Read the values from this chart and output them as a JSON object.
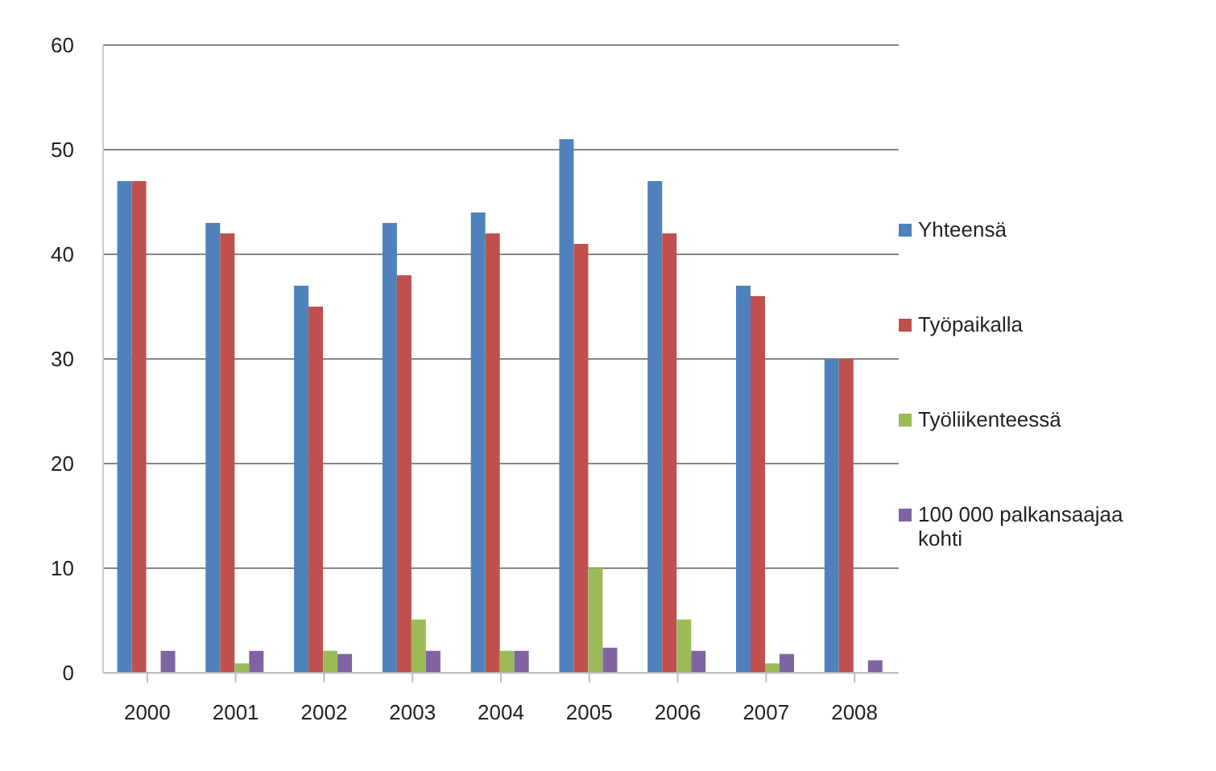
{
  "chart_data": {
    "type": "bar",
    "categories": [
      "2000",
      "2001",
      "2002",
      "2003",
      "2004",
      "2005",
      "2006",
      "2007",
      "2008"
    ],
    "series": [
      {
        "name": "Yhteensä",
        "color": "#4f81bd",
        "values": [
          47,
          43,
          37,
          43,
          44,
          51,
          47,
          37,
          30
        ]
      },
      {
        "name": "Työpaikalla",
        "color": "#c0504d",
        "values": [
          47,
          42,
          35,
          38,
          42,
          41,
          42,
          36,
          30
        ]
      },
      {
        "name": "Työliikenteessä",
        "color": "#9bbb59",
        "values": [
          0,
          0.9,
          2.1,
          5.1,
          2.1,
          10,
          5.1,
          0.9,
          0
        ]
      },
      {
        "name": "100 000 palkansaajaa kohti",
        "color": "#8064a2",
        "values": [
          2.1,
          2.1,
          1.8,
          2.1,
          2.1,
          2.4,
          2.1,
          1.8,
          1.2
        ]
      }
    ],
    "ylim": [
      0,
      60
    ],
    "yticks": [
      0,
      10,
      20,
      30,
      40,
      50,
      60
    ],
    "grid": "y",
    "legend": "right"
  }
}
